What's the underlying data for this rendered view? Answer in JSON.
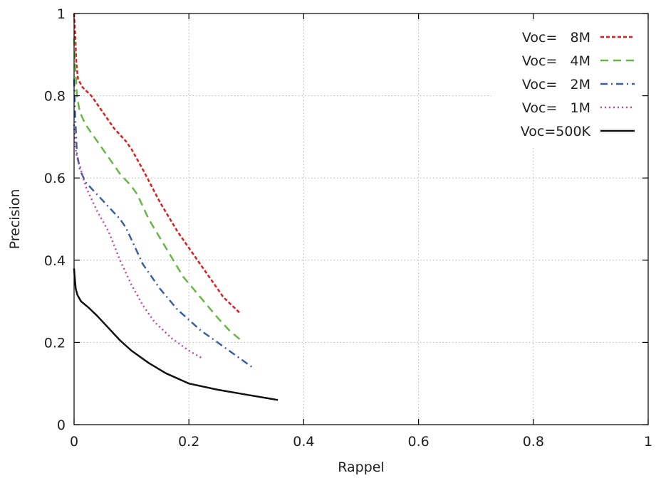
{
  "chart_data": {
    "type": "line",
    "xlabel": "Rappel",
    "ylabel": "Precision",
    "xlim": [
      0,
      1
    ],
    "ylim": [
      0,
      1
    ],
    "xticks": [
      "0",
      "0.2",
      "0.4",
      "0.6",
      "0.8",
      "1"
    ],
    "yticks": [
      "0",
      "0.2",
      "0.4",
      "0.6",
      "0.8",
      "1"
    ],
    "grid": true,
    "legend_position": "top-right",
    "series": [
      {
        "name": "Voc=   8M",
        "color": "#e41a1c",
        "dash": "short-dash",
        "x": [
          0.0,
          0.002,
          0.004,
          0.007,
          0.015,
          0.03,
          0.05,
          0.07,
          0.09,
          0.1,
          0.12,
          0.15,
          0.18,
          0.2,
          0.23,
          0.26,
          0.29
        ],
        "y": [
          1.0,
          0.95,
          0.88,
          0.84,
          0.82,
          0.8,
          0.76,
          0.72,
          0.69,
          0.67,
          0.62,
          0.54,
          0.47,
          0.43,
          0.37,
          0.31,
          0.27
        ]
      },
      {
        "name": "Voc=   4M",
        "color": "#66b845",
        "dash": "long-dash",
        "x": [
          0.0,
          0.002,
          0.005,
          0.01,
          0.02,
          0.04,
          0.06,
          0.08,
          0.1,
          0.11,
          0.13,
          0.16,
          0.19,
          0.22,
          0.25,
          0.27,
          0.295
        ],
        "y": [
          0.94,
          0.88,
          0.8,
          0.76,
          0.73,
          0.69,
          0.65,
          0.61,
          0.58,
          0.56,
          0.5,
          0.43,
          0.36,
          0.31,
          0.26,
          0.23,
          0.2
        ]
      },
      {
        "name": "Voc=   2M",
        "color": "#3a5fa8",
        "dash": "dash-dot",
        "x": [
          0.0,
          0.002,
          0.005,
          0.01,
          0.02,
          0.04,
          0.06,
          0.08,
          0.09,
          0.1,
          0.12,
          0.15,
          0.18,
          0.22,
          0.26,
          0.29,
          0.31
        ],
        "y": [
          0.84,
          0.75,
          0.66,
          0.62,
          0.59,
          0.56,
          0.53,
          0.5,
          0.48,
          0.45,
          0.39,
          0.33,
          0.28,
          0.23,
          0.19,
          0.16,
          0.14
        ]
      },
      {
        "name": "Voc=   1M",
        "color": "#c4479d",
        "dash": "dotted",
        "x": [
          0.0,
          0.002,
          0.005,
          0.01,
          0.02,
          0.04,
          0.06,
          0.08,
          0.1,
          0.12,
          0.14,
          0.17,
          0.2,
          0.225
        ],
        "y": [
          0.73,
          0.68,
          0.65,
          0.63,
          0.58,
          0.52,
          0.47,
          0.4,
          0.34,
          0.29,
          0.25,
          0.21,
          0.18,
          0.16
        ]
      },
      {
        "name": "Voc=500K",
        "color": "#111111",
        "dash": "solid",
        "x": [
          0.0,
          0.001,
          0.003,
          0.006,
          0.012,
          0.025,
          0.04,
          0.06,
          0.08,
          0.1,
          0.13,
          0.16,
          0.2,
          0.25,
          0.3,
          0.355
        ],
        "y": [
          0.38,
          0.36,
          0.33,
          0.315,
          0.3,
          0.285,
          0.265,
          0.235,
          0.205,
          0.18,
          0.15,
          0.125,
          0.1,
          0.085,
          0.073,
          0.06
        ]
      }
    ]
  }
}
